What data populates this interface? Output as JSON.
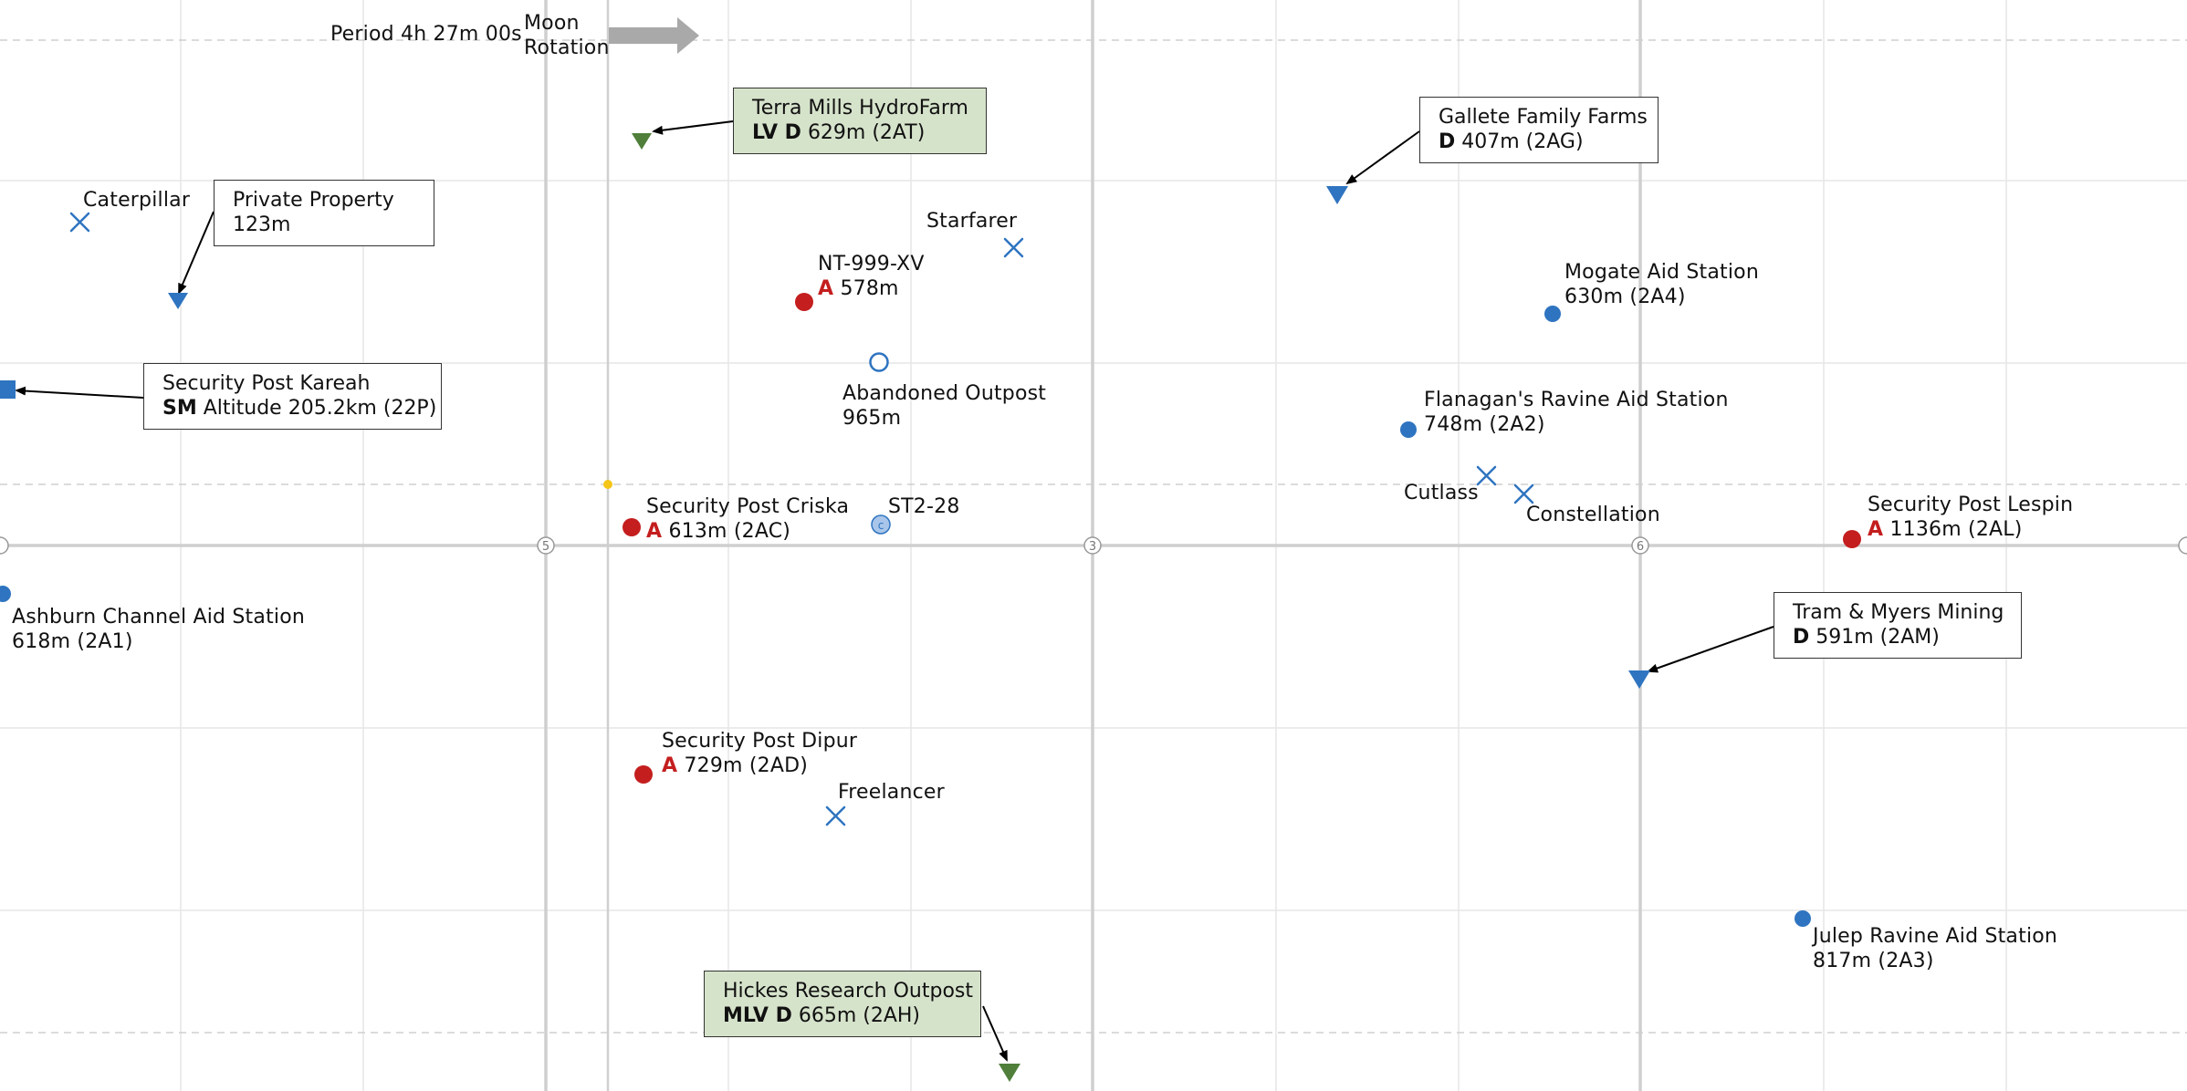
{
  "rotation": {
    "period": "Period 4h 27m 00s",
    "label_line1": "Moon",
    "label_line2": "Rotation"
  },
  "axis_markers": {
    "left": "5",
    "middle": "3",
    "right": "6"
  },
  "colors": {
    "blue": "#2e74c0",
    "red": "#c41e1e",
    "green": "#4f7f3a",
    "box_green_bg": "#d6e3cb",
    "gridline": "#e6e6e6",
    "major_gridline": "#cfcfcf",
    "arrow_gray": "#a9a9a9"
  },
  "callouts": [
    {
      "id": "terra-mills",
      "name": "Terra Mills HydroFarm",
      "tag": "LV D",
      "detail": "629m (2AT)",
      "green": true,
      "marker": "triangle",
      "marker_color": "green"
    },
    {
      "id": "gallete",
      "name": "Gallete Family Farms",
      "tag": "D",
      "detail": "407m (2AG)",
      "green": false,
      "marker": "triangle",
      "marker_color": "blue"
    },
    {
      "id": "private-property",
      "name": "Private Property",
      "tag": "",
      "detail": "123m",
      "green": false,
      "marker": "triangle",
      "marker_color": "blue"
    },
    {
      "id": "kareah",
      "name": "Security Post Kareah",
      "tag": "SM",
      "detail": "Altitude 205.2km (22P)",
      "green": false,
      "marker": "square",
      "marker_color": "blue"
    },
    {
      "id": "tram-myers",
      "name": "Tram & Myers Mining",
      "tag": "D",
      "detail": "591m (2AM)",
      "green": false,
      "marker": "triangle",
      "marker_color": "blue"
    },
    {
      "id": "hickes",
      "name": "Hickes Research Outpost",
      "tag": "MLV D",
      "detail": "665m (2AH)",
      "green": true,
      "marker": "triangle",
      "marker_color": "green"
    }
  ],
  "points": [
    {
      "id": "caterpillar",
      "line1": "Caterpillar",
      "marker": "cross"
    },
    {
      "id": "starfarer",
      "line1": "Starfarer",
      "marker": "cross"
    },
    {
      "id": "nt999",
      "line1": "NT-999-XV",
      "tag": "A",
      "line2": "578m",
      "marker": "dot",
      "color": "red"
    },
    {
      "id": "abandoned",
      "line1": "Abandoned Outpost",
      "line2": "965m",
      "marker": "ring"
    },
    {
      "id": "mogate",
      "line1": "Mogate Aid Station",
      "line2": "630m (2A4)",
      "marker": "dot",
      "color": "blue"
    },
    {
      "id": "flanagan",
      "line1": "Flanagan's Ravine Aid Station",
      "line2": "748m (2A2)",
      "marker": "dot",
      "color": "blue"
    },
    {
      "id": "cutlass",
      "line1": "Cutlass",
      "marker": "cross"
    },
    {
      "id": "constellation",
      "line1": "Constellation",
      "marker": "cross"
    },
    {
      "id": "criska",
      "line1": "Security Post Criska",
      "tag": "A",
      "line2": "613m (2AC)",
      "marker": "dot",
      "color": "red"
    },
    {
      "id": "st228",
      "line1": "ST2-28",
      "marker": "c-dot",
      "glyph": "c"
    },
    {
      "id": "lespin",
      "line1": "Security Post Lespin",
      "tag": "A",
      "line2": "1136m (2AL)",
      "marker": "dot",
      "color": "red"
    },
    {
      "id": "ashburn",
      "line1": "Ashburn Channel Aid Station",
      "line2": "618m (2A1)",
      "marker": "dot",
      "color": "blue"
    },
    {
      "id": "dipur",
      "line1": "Security Post Dipur",
      "tag": "A",
      "line2": "729m (2AD)",
      "marker": "dot",
      "color": "red"
    },
    {
      "id": "freelancer",
      "line1": "Freelancer",
      "marker": "cross"
    },
    {
      "id": "julep",
      "line1": "Julep Ravine Aid Station",
      "line2": "817m (2A3)",
      "marker": "dot",
      "color": "blue"
    }
  ]
}
